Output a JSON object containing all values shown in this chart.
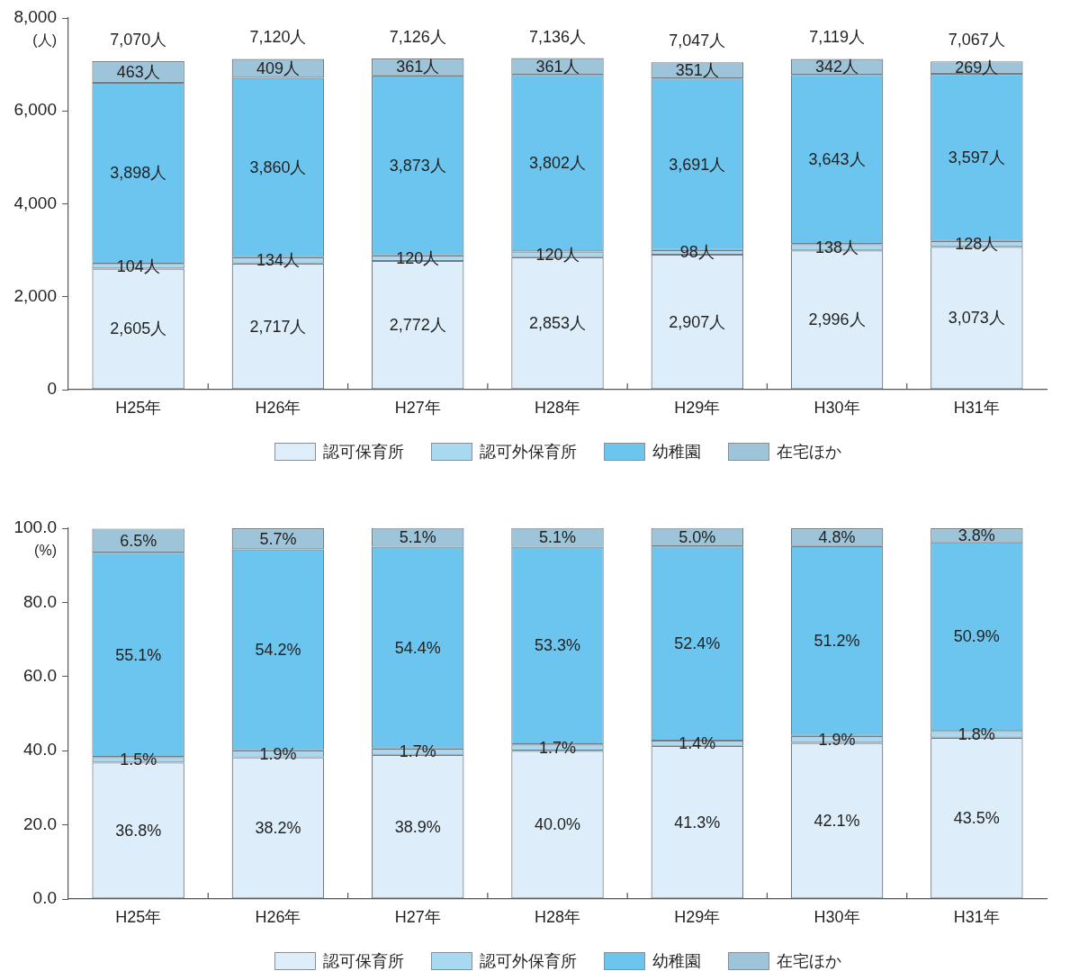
{
  "chart_data": [
    {
      "type": "bar",
      "stacked": true,
      "ylabel": "(人)",
      "legend": "bottom",
      "categories": [
        "H25年",
        "H26年",
        "H27年",
        "H28年",
        "H29年",
        "H30年",
        "H31年"
      ],
      "ylim": [
        0,
        8000
      ],
      "yticks": [
        {
          "value": 0,
          "label": "0"
        },
        {
          "value": 2000,
          "label": "2,000"
        },
        {
          "value": 4000,
          "label": "4,000"
        },
        {
          "value": 6000,
          "label": "6,000"
        },
        {
          "value": 8000,
          "label": "8,000"
        }
      ],
      "series": [
        {
          "name": "認可保育所",
          "color": "#ddeefa",
          "values": [
            2605,
            2717,
            2772,
            2853,
            2907,
            2996,
            3073
          ],
          "value_labels": [
            "2,605人",
            "2,717人",
            "2,772人",
            "2,853人",
            "2,907人",
            "2,996人",
            "3,073人"
          ]
        },
        {
          "name": "認可外保育所",
          "color": "#a9d9f1",
          "values": [
            104,
            134,
            120,
            120,
            98,
            138,
            128
          ],
          "value_labels": [
            "104人",
            "134人",
            "120人",
            "120人",
            "98人",
            "138人",
            "128人"
          ]
        },
        {
          "name": "幼稚園",
          "color": "#6bc5ef",
          "values": [
            3898,
            3860,
            3873,
            3802,
            3691,
            3643,
            3597
          ],
          "value_labels": [
            "3,898人",
            "3,860人",
            "3,873人",
            "3,802人",
            "3,691人",
            "3,643人",
            "3,597人"
          ]
        },
        {
          "name": "在宅ほか",
          "color": "#9ec4d9",
          "values": [
            463,
            409,
            361,
            361,
            351,
            342,
            269
          ],
          "value_labels": [
            "463人",
            "409人",
            "361人",
            "361人",
            "351人",
            "342人",
            "269人"
          ]
        }
      ],
      "totals": [
        "7,070人",
        "7,120人",
        "7,126人",
        "7,136人",
        "7,047人",
        "7,119人",
        "7,067人"
      ]
    },
    {
      "type": "bar",
      "stacked": true,
      "ylabel": "(%)",
      "legend": "bottom",
      "categories": [
        "H25年",
        "H26年",
        "H27年",
        "H28年",
        "H29年",
        "H30年",
        "H31年"
      ],
      "ylim": [
        0,
        100
      ],
      "yticks": [
        {
          "value": 0,
          "label": "0.0"
        },
        {
          "value": 20,
          "label": "20.0"
        },
        {
          "value": 40,
          "label": "40.0"
        },
        {
          "value": 60,
          "label": "60.0"
        },
        {
          "value": 80,
          "label": "80.0"
        },
        {
          "value": 100,
          "label": "100.0"
        }
      ],
      "series": [
        {
          "name": "認可保育所",
          "color": "#ddeefa",
          "values": [
            36.8,
            38.2,
            38.9,
            40.0,
            41.3,
            42.1,
            43.5
          ],
          "value_labels": [
            "36.8%",
            "38.2%",
            "38.9%",
            "40.0%",
            "41.3%",
            "42.1%",
            "43.5%"
          ]
        },
        {
          "name": "認可外保育所",
          "color": "#a9d9f1",
          "values": [
            1.5,
            1.9,
            1.7,
            1.7,
            1.4,
            1.9,
            1.8
          ],
          "value_labels": [
            "1.5%",
            "1.9%",
            "1.7%",
            "1.7%",
            "1.4%",
            "1.9%",
            "1.8%"
          ]
        },
        {
          "name": "幼稚園",
          "color": "#6bc5ef",
          "values": [
            55.1,
            54.2,
            54.4,
            53.3,
            52.4,
            51.2,
            50.9
          ],
          "value_labels": [
            "55.1%",
            "54.2%",
            "54.4%",
            "53.3%",
            "52.4%",
            "51.2%",
            "50.9%"
          ]
        },
        {
          "name": "在宅ほか",
          "color": "#9ec4d9",
          "values": [
            6.5,
            5.7,
            5.1,
            5.1,
            5.0,
            4.8,
            3.8
          ],
          "value_labels": [
            "6.5%",
            "5.7%",
            "5.1%",
            "5.1%",
            "5.0%",
            "4.8%",
            "3.8%"
          ]
        }
      ]
    }
  ]
}
